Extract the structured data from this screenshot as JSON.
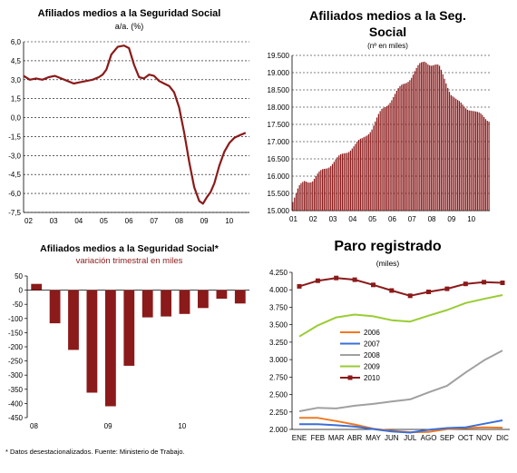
{
  "chart_data": [
    {
      "id": "c1",
      "type": "line",
      "title": "Afiliados medios a la Seguridad Social",
      "subtitle": "a/a. (%)",
      "ylim": [
        -7.5,
        6.0
      ],
      "yticks": [
        "6,0",
        "4,5",
        "3,0",
        "1,5",
        "0,0",
        "-1,5",
        "-3,0",
        "-4,5",
        "-6,0",
        "-7,5"
      ],
      "ytick_values": [
        6.0,
        4.5,
        3.0,
        1.5,
        0.0,
        -1.5,
        -3.0,
        -4.5,
        -6.0,
        -7.5
      ],
      "xticks": [
        "02",
        "03",
        "04",
        "05",
        "06",
        "07",
        "08",
        "09",
        "10"
      ],
      "x_start": 2002,
      "x": [
        2002.0,
        2002.25,
        2002.5,
        2002.75,
        2003.0,
        2003.25,
        2003.5,
        2003.75,
        2004.0,
        2004.25,
        2004.5,
        2004.75,
        2005.0,
        2005.15,
        2005.3,
        2005.5,
        2005.75,
        2006.0,
        2006.2,
        2006.4,
        2006.6,
        2006.8,
        2007.0,
        2007.2,
        2007.4,
        2007.6,
        2007.8,
        2008.0,
        2008.2,
        2008.4,
        2008.6,
        2008.8,
        2009.0,
        2009.15,
        2009.3,
        2009.45,
        2009.6,
        2009.8,
        2010.0,
        2010.2,
        2010.4,
        2010.6,
        2010.85
      ],
      "values": [
        3.3,
        3.0,
        3.1,
        3.0,
        3.2,
        3.3,
        3.1,
        2.9,
        2.7,
        2.8,
        2.9,
        3.0,
        3.2,
        3.4,
        3.8,
        5.0,
        5.6,
        5.7,
        5.5,
        4.2,
        3.2,
        3.1,
        3.4,
        3.3,
        2.9,
        2.7,
        2.5,
        2.0,
        0.8,
        -1.2,
        -3.5,
        -5.5,
        -6.6,
        -6.8,
        -6.3,
        -5.9,
        -5.2,
        -3.8,
        -2.7,
        -2.0,
        -1.6,
        -1.4,
        -1.2
      ],
      "grid": true,
      "color": "#8b1a1a"
    },
    {
      "id": "c2",
      "type": "bar",
      "title": "Afiliados medios a la Seg. Social",
      "title_lines": [
        "Afiliados medios a la Seg.",
        "Social"
      ],
      "subtitle": "(nº en miles)",
      "ylim": [
        15000,
        19500
      ],
      "yticks": [
        "19.500",
        "19.000",
        "18.500",
        "18.000",
        "17.500",
        "17.000",
        "16.500",
        "16.000",
        "15.500",
        "15.000"
      ],
      "ytick_values": [
        19500,
        19000,
        18500,
        18000,
        17500,
        17000,
        16500,
        16000,
        15500,
        15000
      ],
      "xticks": [
        "01",
        "02",
        "03",
        "04",
        "05",
        "06",
        "07",
        "08",
        "09",
        "10"
      ],
      "anchors": [
        [
          2001.0,
          15300
        ],
        [
          2001.3,
          15650
        ],
        [
          2001.6,
          15850
        ],
        [
          2002.0,
          15900
        ],
        [
          2002.5,
          16150
        ],
        [
          2003.0,
          16400
        ],
        [
          2003.5,
          16600
        ],
        [
          2004.0,
          16850
        ],
        [
          2004.5,
          17050
        ],
        [
          2005.0,
          17400
        ],
        [
          2005.5,
          17900
        ],
        [
          2006.0,
          18250
        ],
        [
          2006.5,
          18600
        ],
        [
          2007.0,
          18900
        ],
        [
          2007.4,
          19200
        ],
        [
          2007.7,
          19350
        ],
        [
          2008.0,
          19250
        ],
        [
          2008.4,
          19150
        ],
        [
          2008.7,
          18800
        ],
        [
          2009.0,
          18400
        ],
        [
          2009.3,
          18150
        ],
        [
          2009.6,
          18050
        ],
        [
          2010.0,
          17950
        ],
        [
          2010.3,
          17800
        ],
        [
          2010.6,
          17750
        ],
        [
          2010.9,
          17650
        ]
      ],
      "start": 2001.0,
      "months": 120,
      "color": "#8b1a1a",
      "grid": true
    },
    {
      "id": "c3",
      "type": "bar",
      "title": "Afiliados medios a la Seguridad Social*",
      "subtitle": "variación trimestral en miles",
      "ylim": [
        -450,
        50
      ],
      "yticks": [
        "50",
        "0",
        "-50",
        "-100",
        "-150",
        "-200",
        "-250",
        "-300",
        "-350",
        "-400",
        "-450"
      ],
      "ytick_values": [
        50,
        0,
        -50,
        -100,
        -150,
        -200,
        -250,
        -300,
        -350,
        -400,
        -450
      ],
      "xticks": [
        "08",
        "09",
        "10"
      ],
      "values": [
        22,
        -117,
        -211,
        -362,
        -410,
        -267,
        -96,
        -93,
        -84,
        -63,
        -30,
        -47
      ],
      "color": "#8b1a1a",
      "footnote": "* Datos desestacionalizados. Fuente: Ministerio de Trabajo."
    },
    {
      "id": "c4",
      "type": "line",
      "title": "Paro registrado",
      "subtitle": "(miles)",
      "ylim": [
        2000,
        4250
      ],
      "yticks": [
        "4.250",
        "4.000",
        "3.750",
        "3.500",
        "3.250",
        "3.000",
        "2.750",
        "2.500",
        "2.250",
        "2.000"
      ],
      "ytick_values": [
        4250,
        4000,
        3750,
        3500,
        3250,
        3000,
        2750,
        2500,
        2250,
        2000
      ],
      "categories": [
        "ENE",
        "FEB",
        "MAR",
        "ABR",
        "MAY",
        "JUN",
        "JUL",
        "AGO",
        "SEP",
        "OCT",
        "NOV",
        "DIC"
      ],
      "series": [
        {
          "name": "2006",
          "color": "#f07820",
          "marker": false,
          "values": [
            2165,
            2165,
            2120,
            2070,
            2010,
            1980,
            1960,
            1965,
            2005,
            2020,
            2030,
            2025
          ]
        },
        {
          "name": "2007",
          "color": "#3b6fd6",
          "marker": false,
          "values": [
            2075,
            2075,
            2060,
            2040,
            2005,
            1970,
            1955,
            1995,
            2020,
            2030,
            2080,
            2130
          ]
        },
        {
          "name": "2008",
          "color": "#a0a0a0",
          "marker": false,
          "values": [
            2260,
            2310,
            2300,
            2340,
            2365,
            2400,
            2430,
            2530,
            2625,
            2815,
            2990,
            3130
          ]
        },
        {
          "name": "2009",
          "color": "#99cc33",
          "marker": false,
          "values": [
            3330,
            3490,
            3605,
            3645,
            3620,
            3565,
            3545,
            3630,
            3710,
            3810,
            3870,
            3925
          ]
        },
        {
          "name": "2010",
          "color": "#8b1a1a",
          "marker": true,
          "values": [
            4050,
            4130,
            4170,
            4145,
            4070,
            3990,
            3915,
            3970,
            4015,
            4085,
            4110,
            4100
          ]
        }
      ]
    }
  ]
}
